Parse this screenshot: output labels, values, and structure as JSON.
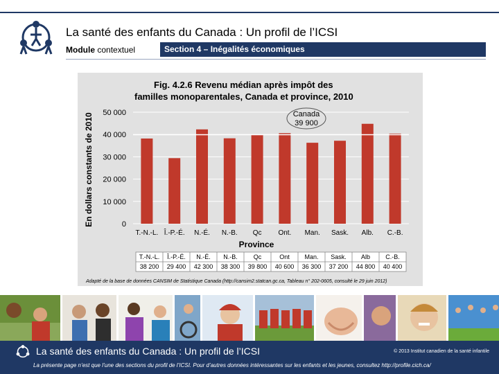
{
  "header": {
    "title": "La santé des enfants du Canada : Un profil de l’ICSI",
    "module_bold": "Module",
    "module_rest": "contextuel",
    "section": "Section 4 – Inégalités économiques"
  },
  "chart_data": {
    "type": "bar",
    "title_line1": "Fig. 4.2.6  Revenu médian après impôt des",
    "title_line2": "familles monoparentales, Canada et province, 2010",
    "ylabel": "En dollars constants de 2010",
    "xlabel": "Province",
    "ylim": [
      0,
      50000
    ],
    "yticks": [
      "0",
      "10 000",
      "20 000",
      "30 000",
      "40 000",
      "50 000"
    ],
    "categories": [
      "T.-N.-L.",
      "Î.-P.-É.",
      "N.-É.",
      "N.-B.",
      "Qc",
      "Ont.",
      "Man.",
      "Sask.",
      "Alb.",
      "C.-B."
    ],
    "values": [
      38200,
      29400,
      42300,
      38300,
      39800,
      40600,
      36300,
      37200,
      44800,
      40400
    ],
    "bar_color": "#c0392b",
    "canada_label": "Canada",
    "canada_value_text": "39 900",
    "canada_value": 39900,
    "table_headers": [
      "T.-N.-L.",
      "Î.-P.-É.",
      "N.-É.",
      "N.-B.",
      "Qc",
      "Ont",
      "Man.",
      "Sask.",
      "Alb",
      "C.-B."
    ],
    "table_values": [
      "38 200",
      "29 400",
      "42 300",
      "38 300",
      "39 800",
      "40 600",
      "36 300",
      "37 200",
      "44 800",
      "40 400"
    ],
    "source": "Adapté de la base de données CANSIM de Statistique Canada (http://cansim2.statcan.gc.ca, Tableau n° 202-0605, consulté le 29 juin 2012)"
  },
  "footer": {
    "title": "La santé des enfants du Canada : Un profil de l’ICSI",
    "copyright": "© 2013  Institut canadien de la santé infantile",
    "note": "La présente page n’est que l’une des sections du profil de l’ICSI. Pour d’autres données intéressantes sur les enfants et les jeunes, consultez http://profile.cich.ca/"
  },
  "colors": {
    "navy": "#1f3864",
    "panel": "#e1e1e1",
    "bar": "#c0392b"
  }
}
